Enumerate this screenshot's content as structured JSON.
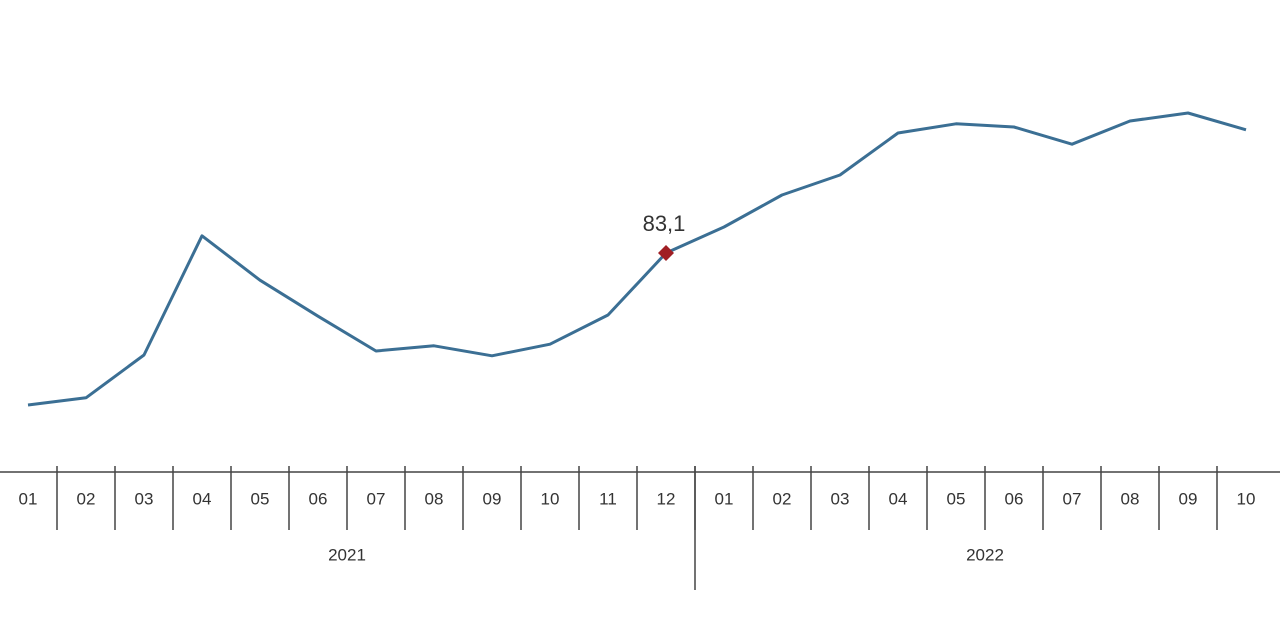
{
  "chart_data": {
    "type": "line",
    "categories": [
      "01",
      "02",
      "03",
      "04",
      "05",
      "06",
      "07",
      "08",
      "09",
      "10",
      "11",
      "12",
      "01",
      "02",
      "03",
      "04",
      "05",
      "06",
      "07",
      "08",
      "09",
      "10"
    ],
    "x_groups": [
      "2021",
      "2022"
    ],
    "series": [
      {
        "color": "#3b6f94",
        "values": [
          45.1,
          46.9,
          57.6,
          87.4,
          76.3,
          67.3,
          58.6,
          59.9,
          57.4,
          60.3,
          67.6,
          83.1,
          89.6,
          97.6,
          102.6,
          113.1,
          115.4,
          114.6,
          110.3,
          116.1,
          118.1,
          113.9
        ],
        "value_labels": [
          null,
          null,
          null,
          null,
          null,
          null,
          null,
          null,
          null,
          null,
          null,
          "83,1",
          null,
          null,
          null,
          null,
          null,
          null,
          null,
          null,
          null,
          null
        ],
        "marker_color": "#a01e24"
      }
    ],
    "grid": false
  }
}
